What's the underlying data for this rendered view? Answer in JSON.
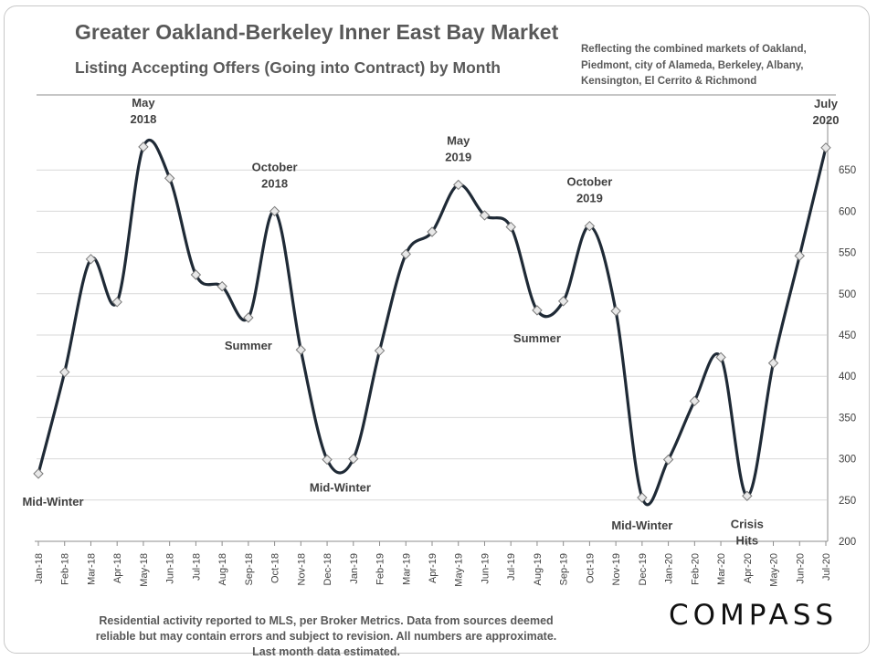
{
  "header": {
    "title": "Greater Oakland-Berkeley Inner East Bay Market",
    "subtitle": "Listing Accepting Offers (Going into Contract) by Month",
    "note_lines": [
      "Reflecting the combined markets of Oakland,",
      "Piedmont, city of Alameda, Berkeley, Albany,",
      "Kensington, El Cerrito & Richmond"
    ]
  },
  "footer": {
    "lines": [
      "Residential activity reported to MLS, per Broker Metrics. Data from sources deemed",
      "reliable but may contain errors and subject to revision. All numbers are approximate.",
      "Last month data estimated."
    ],
    "brand": "COMPASS"
  },
  "chart_data": {
    "type": "line",
    "title": "Greater Oakland-Berkeley Inner East Bay Market",
    "subtitle": "Listing Accepting Offers (Going into Contract) by Month",
    "categories": [
      "Jan-18",
      "Feb-18",
      "Mar-18",
      "Apr-18",
      "May-18",
      "Jun-18",
      "Jul-18",
      "Aug-18",
      "Sep-18",
      "Oct-18",
      "Nov-18",
      "Dec-18",
      "Jan-19",
      "Feb-19",
      "Mar-19",
      "Apr-19",
      "May-19",
      "Jun-19",
      "Jul-19",
      "Aug-19",
      "Sep-19",
      "Oct-19",
      "Nov-19",
      "Dec-19",
      "Jan-20",
      "Feb-20",
      "Mar-20",
      "Apr-20",
      "May-20",
      "Jun-20",
      "Jul-20"
    ],
    "series": [
      {
        "values": [
          282,
          405,
          542,
          490,
          678,
          640,
          523,
          509,
          471,
          600,
          432,
          299,
          300,
          431,
          548,
          575,
          632,
          595,
          581,
          480,
          491,
          582,
          479,
          253,
          299,
          370,
          423,
          255,
          416,
          546,
          677
        ]
      }
    ],
    "ylim": [
      200,
      690
    ],
    "yticks": [
      200,
      250,
      300,
      350,
      400,
      450,
      500,
      550,
      600,
      650
    ],
    "y_axis_position": "right",
    "grid": true,
    "line_color": "#1f2a36",
    "marker": "diamond",
    "annotations": [
      {
        "lines": [
          "Mid-Winter"
        ],
        "index": 0,
        "place": "below"
      },
      {
        "lines": [
          "May",
          "2018"
        ],
        "index": 4,
        "place": "above"
      },
      {
        "lines": [
          "Summer"
        ],
        "index": 8,
        "place": "below"
      },
      {
        "lines": [
          "October",
          "2018"
        ],
        "index": 9,
        "place": "above"
      },
      {
        "lines": [
          "Mid-Winter"
        ],
        "index": 11.5,
        "place": "below"
      },
      {
        "lines": [
          "May",
          "2019"
        ],
        "index": 16,
        "place": "above"
      },
      {
        "lines": [
          "Summer"
        ],
        "index": 19,
        "place": "below"
      },
      {
        "lines": [
          "October",
          "2019"
        ],
        "index": 21,
        "place": "above"
      },
      {
        "lines": [
          "Mid-Winter"
        ],
        "index": 23,
        "place": "below"
      },
      {
        "lines": [
          "Crisis",
          "Hits"
        ],
        "index": 27,
        "place": "below"
      },
      {
        "lines": [
          "July",
          "2020"
        ],
        "index": 30,
        "place": "above"
      }
    ]
  }
}
